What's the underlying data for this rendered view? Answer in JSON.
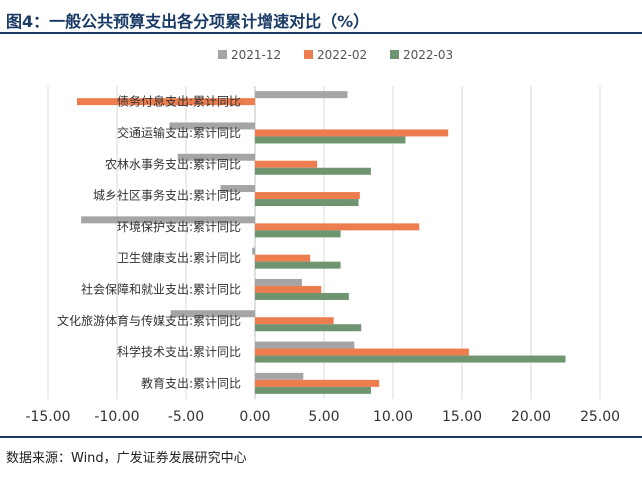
{
  "title": "图4：一般公共预算支出各分项累计增速对比（%）",
  "source": "数据来源：Wind，广发证券发展研究中心",
  "chart_data": {
    "type": "bar",
    "orientation": "horizontal",
    "categories": [
      "债务付息支出:累计同比",
      "交通运输支出:累计同比",
      "农林水事务支出:累计同比",
      "城乡社区事务支出:累计同比",
      "环境保护支出:累计同比",
      "卫生健康支出:累计同比",
      "社会保障和就业支出:累计同比",
      "文化旅游体育与传媒支出:累计同比",
      "科学技术支出:累计同比",
      "教育支出:累计同比"
    ],
    "series": [
      {
        "name": "2021-12",
        "color": "#a5a5a5",
        "values": [
          6.7,
          -6.2,
          -5.6,
          -2.5,
          -12.6,
          -0.2,
          3.4,
          -6.1,
          7.2,
          3.5
        ]
      },
      {
        "name": "2022-02",
        "color": "#ed7d4f",
        "values": [
          -12.9,
          14.0,
          4.5,
          7.6,
          11.9,
          4.0,
          4.8,
          5.7,
          15.5,
          9.0
        ]
      },
      {
        "name": "2022-03",
        "color": "#6f9470",
        "values": [
          0.0,
          10.9,
          8.4,
          7.5,
          6.2,
          6.2,
          6.8,
          7.7,
          22.5,
          8.4
        ]
      }
    ],
    "xlim": [
      -15,
      25
    ],
    "xticks": [
      "-15.00",
      "-10.00",
      "-5.00",
      "0.00",
      "5.00",
      "10.00",
      "15.00",
      "20.00",
      "25.00"
    ],
    "xlabel": "",
    "ylabel": "",
    "grid": true,
    "legend": "top-center"
  }
}
